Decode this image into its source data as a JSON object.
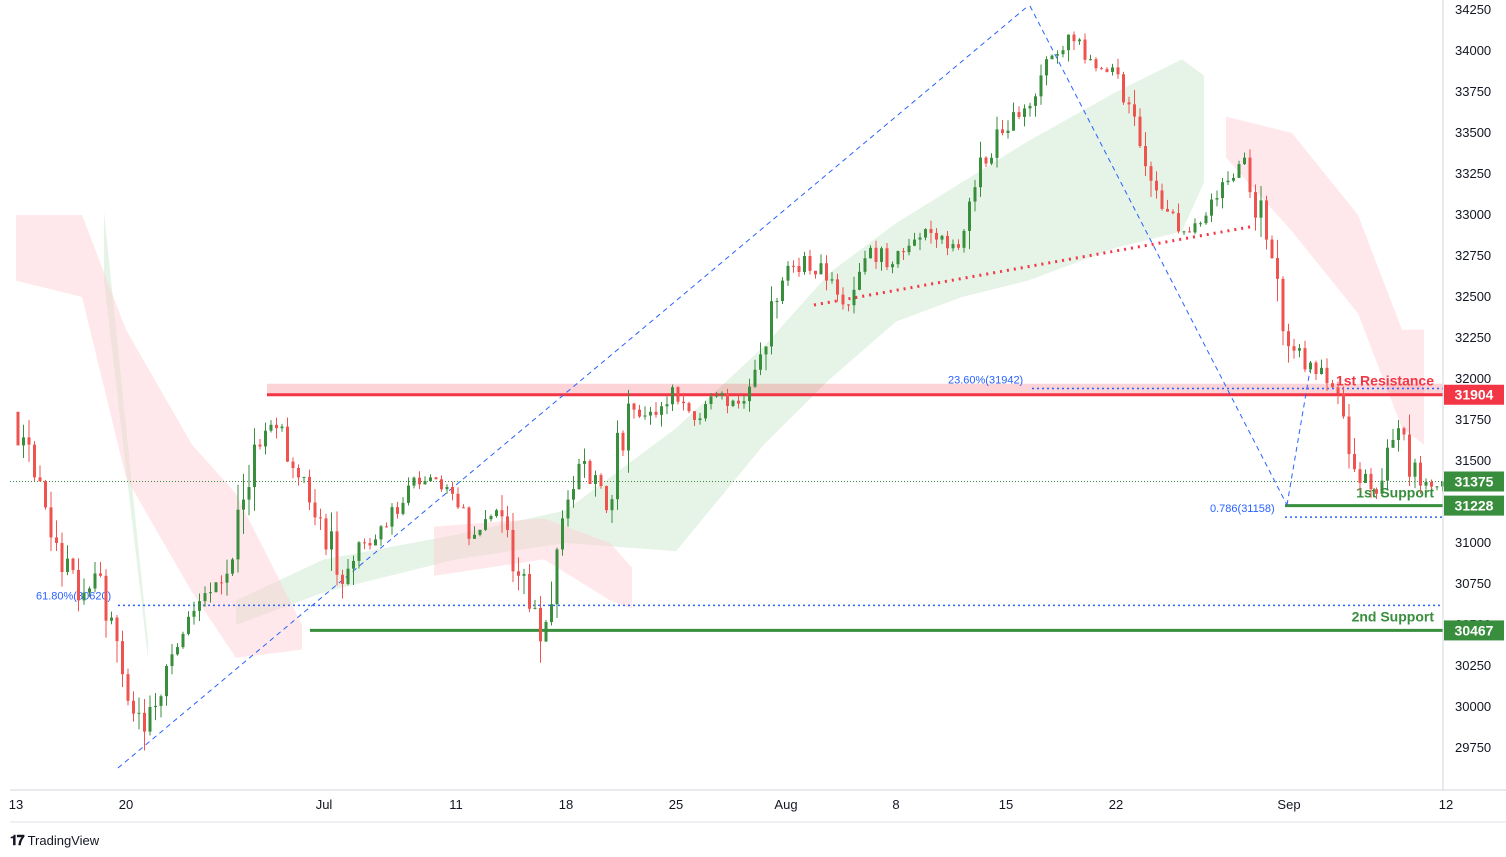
{
  "chart_data": {
    "type": "candlestick",
    "y_axis": {
      "ticks": [
        34250,
        34000,
        33750,
        33500,
        33250,
        33000,
        32750,
        32500,
        32250,
        32000,
        31750,
        31500,
        31000,
        30750,
        30500,
        30250,
        30000,
        29750
      ],
      "range": [
        29550,
        34300
      ],
      "position": "right"
    },
    "x_axis": {
      "ticks": [
        {
          "label": "13",
          "bar": 0
        },
        {
          "label": "20",
          "bar": 5
        },
        {
          "label": "Jul",
          "bar": 14
        },
        {
          "label": "11",
          "bar": 20
        },
        {
          "label": "18",
          "bar": 25
        },
        {
          "label": "25",
          "bar": 30
        },
        {
          "label": "Aug",
          "bar": 35
        },
        {
          "label": "8",
          "bar": 40
        },
        {
          "label": "15",
          "bar": 45
        },
        {
          "label": "22",
          "bar": 50
        },
        {
          "label": "Sep",
          "bar": 58
        },
        {
          "label": "12",
          "bar": 65
        }
      ]
    },
    "price_labels": [
      {
        "name": "resistance",
        "value": 31904,
        "text": "31904",
        "color": "#f23645"
      },
      {
        "name": "last-price",
        "value": 31375,
        "text": "31375",
        "color": "#388e3c"
      },
      {
        "name": "support-1",
        "value": 31228,
        "text": "31228",
        "color": "#388e3c"
      },
      {
        "name": "support-2",
        "value": 30467,
        "text": "30467",
        "color": "#388e3c"
      }
    ],
    "levels": [
      {
        "name": "1st Resistance",
        "value": 31904,
        "color": "#f23645"
      },
      {
        "name": "1st Support",
        "value": 31228,
        "color": "#388e3c"
      },
      {
        "name": "2nd Support",
        "value": 30467,
        "color": "#388e3c"
      }
    ],
    "fib_labels": [
      {
        "text": "23.60%(31942)",
        "value": 31942
      },
      {
        "text": "0.786(31158)",
        "value": 31158
      },
      {
        "text": "61.80%(30620)",
        "value": 30620
      }
    ],
    "ohlc": [
      [
        31800,
        31900,
        31300,
        31400
      ],
      [
        31400,
        31500,
        30900,
        31000
      ],
      [
        31000,
        31100,
        30500,
        30650
      ],
      [
        30650,
        30900,
        30400,
        30800
      ],
      [
        30800,
        30900,
        30100,
        30200
      ],
      [
        30200,
        30300,
        29650,
        29850
      ],
      [
        29850,
        30300,
        29800,
        30250
      ],
      [
        30250,
        30600,
        30200,
        30550
      ],
      [
        30550,
        30800,
        30400,
        30700
      ],
      [
        30700,
        31000,
        30500,
        30900
      ],
      [
        30900,
        31700,
        30800,
        31600
      ],
      [
        31600,
        31800,
        31450,
        31700
      ],
      [
        31700,
        31950,
        31350,
        31400
      ],
      [
        31400,
        31500,
        31000,
        31150
      ],
      [
        31150,
        31300,
        30500,
        30750
      ],
      [
        30750,
        31050,
        30450,
        31000
      ],
      [
        31000,
        31200,
        30950,
        31100
      ],
      [
        31100,
        31400,
        31050,
        31350
      ],
      [
        31350,
        31450,
        31200,
        31400
      ],
      [
        31400,
        31500,
        31250,
        31300
      ],
      [
        31300,
        31450,
        30900,
        31050
      ],
      [
        31050,
        31300,
        30950,
        31200
      ],
      [
        31200,
        31300,
        30700,
        30800
      ],
      [
        30800,
        30950,
        30200,
        30400
      ],
      [
        30400,
        31200,
        30350,
        31150
      ],
      [
        31150,
        31600,
        31100,
        31500
      ],
      [
        31500,
        31600,
        31000,
        31200
      ],
      [
        31200,
        31950,
        31100,
        31850
      ],
      [
        31850,
        32000,
        31650,
        31800
      ],
      [
        31800,
        32100,
        31700,
        31950
      ],
      [
        31950,
        32000,
        31650,
        31750
      ],
      [
        31750,
        31950,
        31700,
        31900
      ],
      [
        31900,
        32000,
        31750,
        31850
      ],
      [
        31850,
        32300,
        31800,
        32150
      ],
      [
        32150,
        32700,
        32000,
        32600
      ],
      [
        32600,
        32900,
        32500,
        32750
      ],
      [
        32750,
        32900,
        32500,
        32600
      ],
      [
        32600,
        32700,
        32400,
        32450
      ],
      [
        32450,
        32850,
        32400,
        32800
      ],
      [
        32800,
        32900,
        32550,
        32700
      ],
      [
        32700,
        32900,
        32600,
        32850
      ],
      [
        32850,
        33150,
        32750,
        32850
      ],
      [
        32850,
        32950,
        32700,
        32800
      ],
      [
        32800,
        33450,
        32750,
        33350
      ],
      [
        33350,
        33650,
        33200,
        33500
      ],
      [
        33500,
        33800,
        33400,
        33650
      ],
      [
        33650,
        34050,
        33600,
        33950
      ],
      [
        33950,
        34250,
        33850,
        34100
      ],
      [
        34100,
        34150,
        33850,
        33950
      ],
      [
        33950,
        34050,
        33800,
        33900
      ],
      [
        33900,
        34050,
        33500,
        33600
      ],
      [
        33600,
        33650,
        33100,
        33150
      ],
      [
        33150,
        33200,
        32850,
        32900
      ],
      [
        32900,
        33000,
        32800,
        32950
      ],
      [
        32950,
        33250,
        32900,
        33200
      ],
      [
        33200,
        33450,
        33100,
        33350
      ],
      [
        33350,
        33400,
        32700,
        32850
      ],
      [
        32850,
        32900,
        32100,
        32200
      ],
      [
        32200,
        32350,
        31950,
        32100
      ],
      [
        32100,
        32250,
        31900,
        31950
      ],
      [
        31950,
        32000,
        31350,
        31450
      ],
      [
        31450,
        31500,
        31200,
        31300
      ],
      [
        31300,
        31750,
        31200,
        31700
      ],
      [
        31700,
        32000,
        31300,
        31350
      ],
      [
        31350,
        31450,
        31250,
        31375
      ]
    ],
    "cloud_green": [
      [
        4,
        33020,
        32600
      ],
      [
        6,
        30400,
        30300
      ],
      [
        10,
        30650,
        30500
      ],
      [
        14,
        30900,
        30700
      ],
      [
        20,
        31050,
        30900
      ],
      [
        25,
        31200,
        31000
      ],
      [
        30,
        31700,
        30950
      ],
      [
        34,
        32200,
        31600
      ],
      [
        37,
        32650,
        32000
      ],
      [
        40,
        32950,
        32350
      ],
      [
        43,
        33200,
        32500
      ],
      [
        46,
        33450,
        32600
      ],
      [
        50,
        33750,
        32800
      ],
      [
        53,
        33950,
        32900
      ],
      [
        54,
        33850,
        33200
      ]
    ],
    "cloud_red": [
      [
        0,
        33000,
        32600
      ],
      [
        3,
        33000,
        32500
      ],
      [
        5,
        32300,
        31400
      ],
      [
        8,
        31600,
        30700
      ],
      [
        10,
        31300,
        30300
      ],
      [
        13,
        30500,
        30350
      ],
      [
        19,
        31100,
        30800
      ],
      [
        24,
        31150,
        30900
      ],
      [
        27,
        31000,
        30650
      ],
      [
        28,
        30850,
        30600
      ],
      [
        55,
        33600,
        33350
      ],
      [
        58,
        33500,
        32900
      ],
      [
        61,
        33000,
        32400
      ],
      [
        63,
        32300,
        31700
      ],
      [
        64,
        32300,
        31600
      ]
    ]
  },
  "branding": {
    "name": "TradingView"
  }
}
